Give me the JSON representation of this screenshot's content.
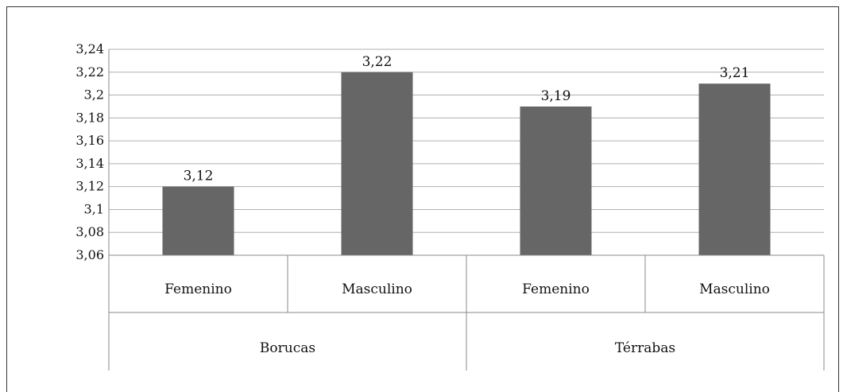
{
  "chart_data": {
    "type": "bar",
    "title": "",
    "xlabel": "",
    "ylabel": "",
    "groups": [
      {
        "label": "Borucas",
        "categories": [
          "Femenino",
          "Masculino"
        ],
        "values": [
          3.12,
          3.22
        ],
        "data_labels": [
          "3,12",
          "3,22"
        ]
      },
      {
        "label": "Térrabas",
        "categories": [
          "Femenino",
          "Masculino"
        ],
        "values": [
          3.19,
          3.21
        ],
        "data_labels": [
          "3,19",
          "3,21"
        ]
      }
    ],
    "ylim": [
      3.06,
      3.24
    ],
    "yticks": [
      3.06,
      3.08,
      3.1,
      3.12,
      3.14,
      3.16,
      3.18,
      3.2,
      3.22,
      3.24
    ],
    "ytick_labels": [
      "3,06",
      "3,08",
      "3,1",
      "3,12",
      "3,14",
      "3,16",
      "3,18",
      "3,2",
      "3,22",
      "3,24"
    ],
    "grid": true,
    "legend": "none",
    "bar_color": "#666666",
    "grid_color": "#b0b0b0"
  }
}
